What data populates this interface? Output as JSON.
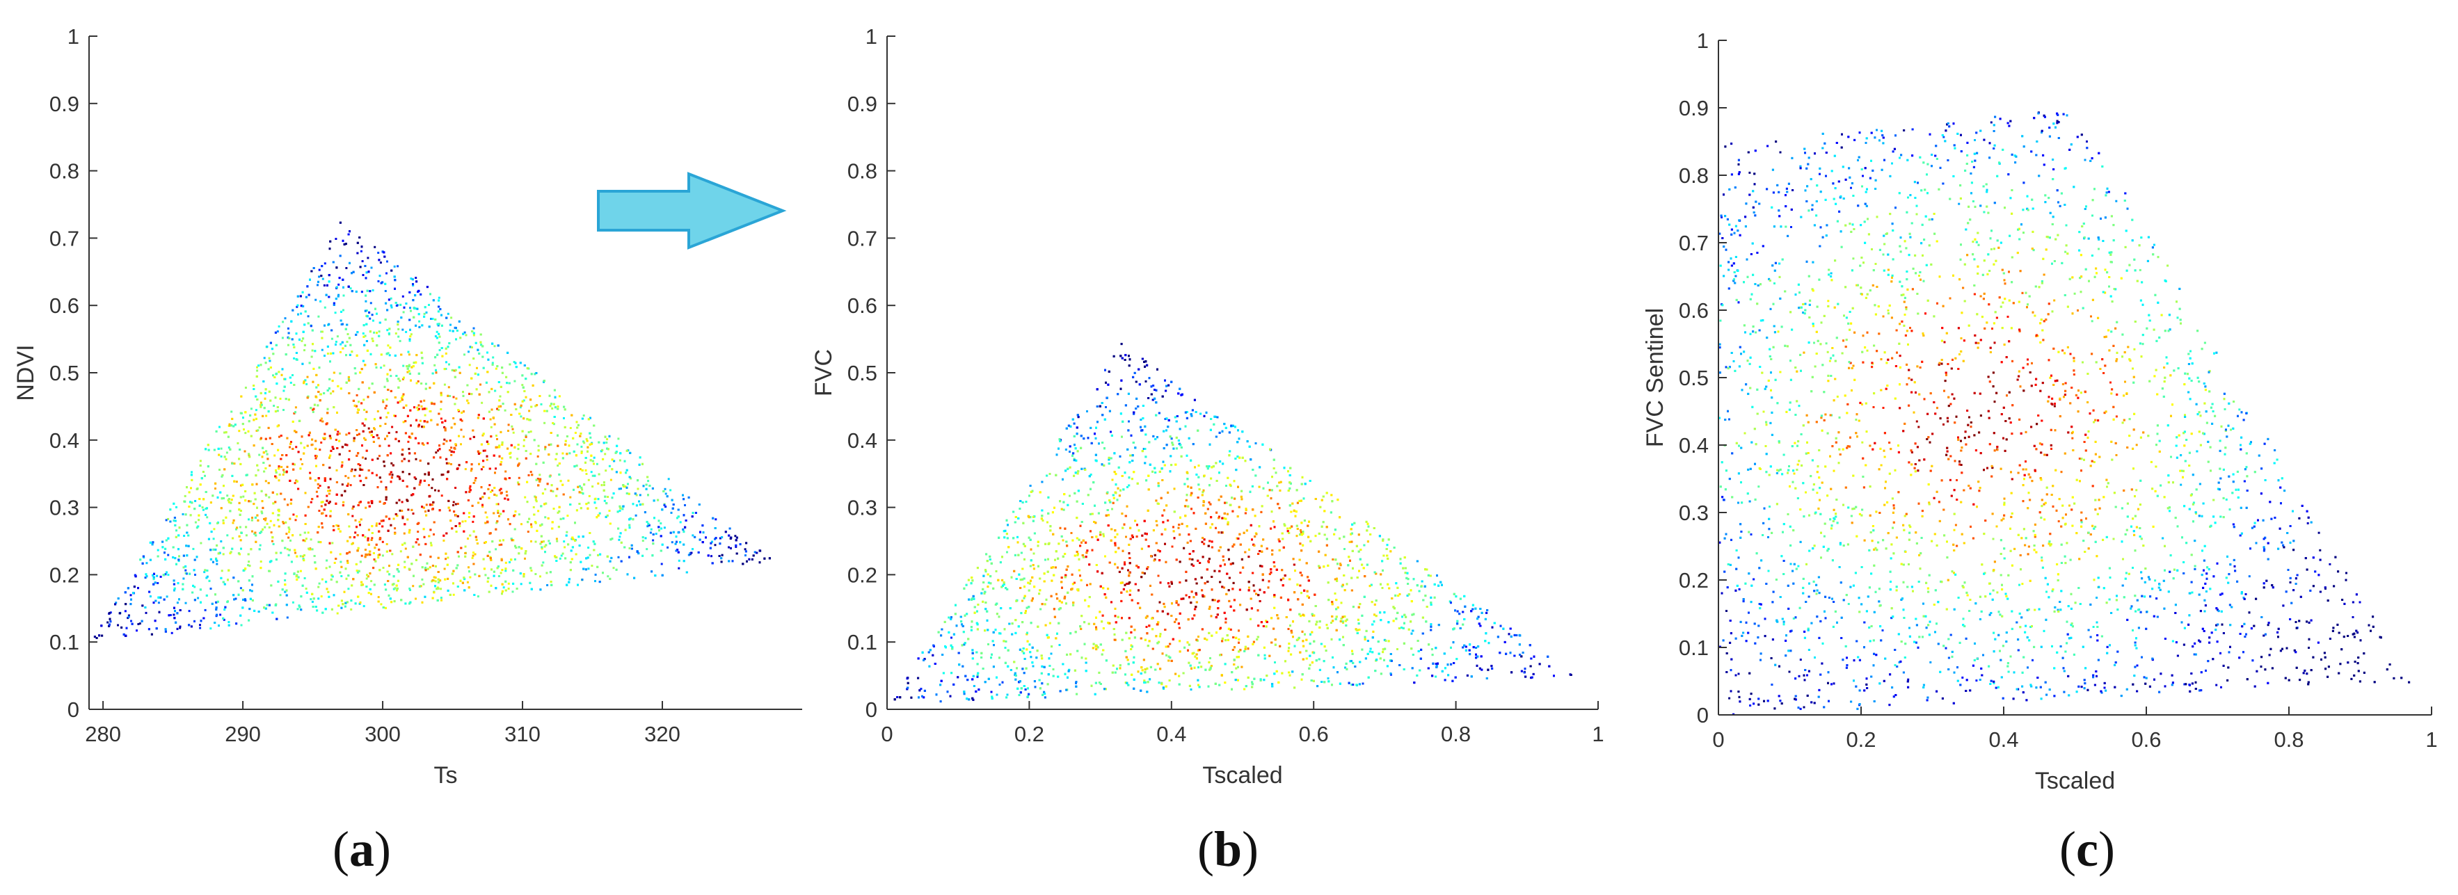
{
  "figure": {
    "arrow_color": "#6fd4ea",
    "arrow_stroke": "#2aa5d6",
    "colormap": "jet"
  },
  "panel_labels": [
    {
      "open": "(",
      "letter": "a",
      "close": ")"
    },
    {
      "open": "(",
      "letter": "b",
      "close": ")"
    },
    {
      "open": "(",
      "letter": "c",
      "close": ")"
    }
  ],
  "chart_data": [
    {
      "type": "scatter",
      "title": "",
      "xlabel": "Ts",
      "ylabel": "NDVI",
      "xlim": [
        279,
        330
      ],
      "ylim": [
        0,
        1
      ],
      "xticks": [
        280,
        290,
        300,
        310,
        320
      ],
      "yticks": [
        0,
        0.1,
        0.2,
        0.3,
        0.4,
        0.5,
        0.6,
        0.7,
        0.8,
        0.9,
        1
      ],
      "grid": false,
      "legend": "none",
      "color_encoding": "point density (jet colormap, red = high)",
      "shape": "triangular scatter cloud",
      "vertices": [
        {
          "x": 279,
          "y": 0.1
        },
        {
          "x": 297,
          "y": 0.73
        },
        {
          "x": 328,
          "y": 0.22
        }
      ],
      "ranges": {
        "x": [
          279,
          329
        ],
        "y": [
          0.02,
          0.78
        ]
      }
    },
    {
      "type": "scatter",
      "title": "",
      "xlabel": "Tscaled",
      "ylabel": "FVC",
      "xlim": [
        0,
        1
      ],
      "ylim": [
        0,
        1
      ],
      "xticks": [
        0,
        0.2,
        0.4,
        0.6,
        0.8,
        1
      ],
      "yticks": [
        0,
        0.1,
        0.2,
        0.3,
        0.4,
        0.5,
        0.6,
        0.7,
        0.8,
        0.9,
        1
      ],
      "grid": false,
      "legend": "none",
      "color_encoding": "point density (jet colormap, red = high)",
      "shape": "triangular scatter cloud",
      "vertices": [
        {
          "x": 0.0,
          "y": 0.01
        },
        {
          "x": 0.33,
          "y": 0.55
        },
        {
          "x": 0.97,
          "y": 0.05
        }
      ],
      "ranges": {
        "x": [
          0,
          0.98
        ],
        "y": [
          0,
          0.61
        ]
      }
    },
    {
      "type": "scatter",
      "title": "",
      "xlabel": "Tscaled",
      "ylabel": "FVC Sentinel",
      "xlim": [
        0,
        1
      ],
      "ylim": [
        0,
        1
      ],
      "xticks": [
        0,
        0.2,
        0.4,
        0.6,
        0.8,
        1
      ],
      "yticks": [
        0,
        0.1,
        0.2,
        0.3,
        0.4,
        0.5,
        0.6,
        0.7,
        0.8,
        0.9,
        1
      ],
      "grid": false,
      "legend": "none",
      "color_encoding": "point density (jet colormap, red = high)",
      "shape": "trapezoidal scatter cloud",
      "vertices": [
        {
          "x": 0.0,
          "y": 0.85
        },
        {
          "x": 0.5,
          "y": 0.9
        },
        {
          "x": 0.97,
          "y": 0.05
        },
        {
          "x": 0.0,
          "y": 0.0
        }
      ],
      "ranges": {
        "x": [
          0,
          0.98
        ],
        "y": [
          0,
          0.95
        ]
      }
    }
  ]
}
